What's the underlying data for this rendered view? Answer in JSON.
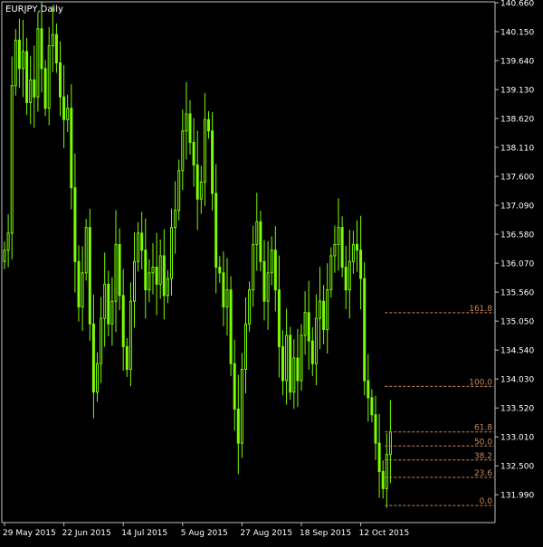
{
  "window": {
    "title": "EURJPY,Daily"
  },
  "colors": {
    "background": "#000000",
    "frame": "#c0c0c0",
    "candle": "#7cfc00",
    "fibo": "#cc8855",
    "text": "#ffffff"
  },
  "chart_data": {
    "type": "candlestick",
    "symbol": "EURJPY",
    "timeframe": "Daily",
    "ylim": [
      131.5,
      140.66
    ],
    "y_ticks": [
      "140.660",
      "140.150",
      "139.640",
      "139.130",
      "138.620",
      "138.110",
      "137.600",
      "137.090",
      "136.580",
      "136.070",
      "135.560",
      "135.050",
      "134.540",
      "134.030",
      "133.520",
      "133.010",
      "132.500",
      "131.990"
    ],
    "x_labels": [
      {
        "label": "29 May 2015",
        "bar": 0
      },
      {
        "label": "22 Jun 2015",
        "bar": 16
      },
      {
        "label": "14 Jul 2015",
        "bar": 32
      },
      {
        "label": "5 Aug 2015",
        "bar": 48
      },
      {
        "label": "27 Aug 2015",
        "bar": 64
      },
      {
        "label": "18 Sep 2015",
        "bar": 80
      },
      {
        "label": "12 Oct 2015",
        "bar": 96
      }
    ],
    "closes": [
      136.3,
      136.6,
      139.2,
      140.0,
      139.5,
      139.8,
      138.9,
      139.3,
      139.0,
      140.2,
      139.5,
      138.8,
      139.9,
      140.1,
      139.6,
      139.0,
      138.6,
      138.8,
      137.4,
      136.1,
      135.3,
      135.9,
      136.7,
      135.0,
      133.8,
      134.3,
      135.1,
      135.7,
      135.0,
      135.4,
      136.4,
      135.5,
      134.6,
      134.2,
      135.4,
      136.1,
      136.6,
      136.3,
      135.6,
      135.9,
      136.0,
      135.7,
      136.2,
      135.5,
      135.8,
      136.7,
      137.0,
      137.7,
      138.4,
      138.7,
      138.2,
      137.8,
      137.2,
      137.5,
      138.6,
      138.4,
      137.3,
      136.0,
      135.9,
      135.3,
      135.6,
      134.3,
      133.5,
      132.9,
      134.2,
      135.0,
      135.6,
      136.4,
      136.8,
      136.1,
      135.4,
      135.9,
      136.3,
      135.6,
      134.6,
      134.0,
      134.8,
      133.8,
      134.4,
      134.0,
      134.8,
      135.2,
      134.7,
      134.3,
      135.1,
      135.4,
      134.9,
      135.6,
      136.2,
      136.4,
      136.7,
      136.0,
      135.6,
      136.1,
      136.4,
      136.3,
      135.8,
      134.0,
      133.7,
      133.4,
      132.9,
      132.4,
      132.1,
      132.7,
      133.1
    ],
    "fibonacci": {
      "anchor_high": 133.9,
      "anchor_low": 131.8,
      "levels": [
        {
          "label": "161.8",
          "ratio": 1.618
        },
        {
          "label": "100.0",
          "ratio": 1.0
        },
        {
          "label": "61.8",
          "ratio": 0.618
        },
        {
          "label": "50.0",
          "ratio": 0.5
        },
        {
          "label": "38.2",
          "ratio": 0.382
        },
        {
          "label": "23.6",
          "ratio": 0.236
        },
        {
          "label": "0.0",
          "ratio": 0.0
        }
      ]
    },
    "grid": false
  }
}
